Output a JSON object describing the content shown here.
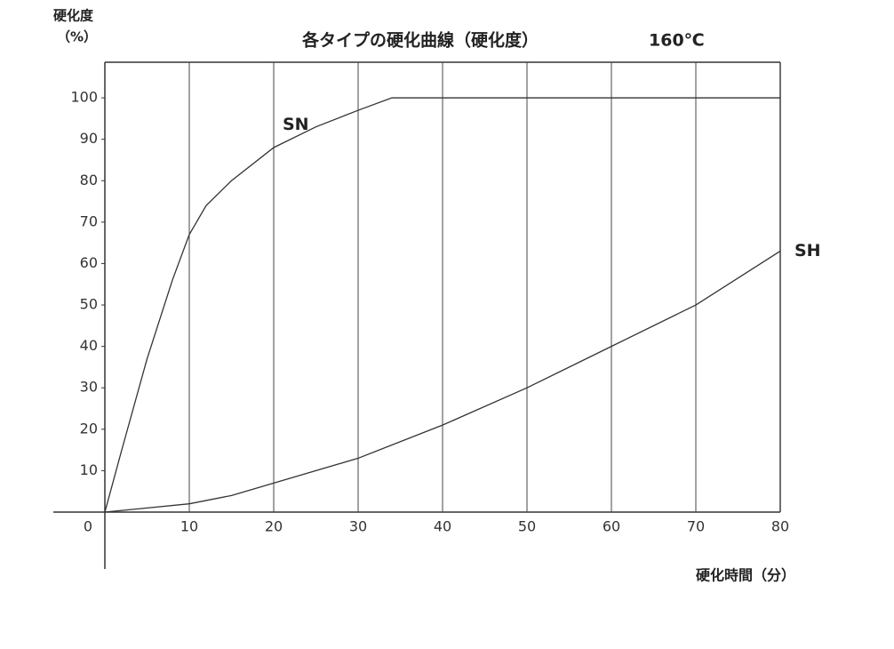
{
  "chart_data": {
    "type": "line",
    "title": "各タイプの硬化曲線（硬化度）",
    "subtitle": "160℃",
    "ylabel": [
      "硬化度",
      "（%）"
    ],
    "xlabel": "硬化時間（分）",
    "xlim": [
      0,
      80
    ],
    "ylim": [
      0,
      108.6
    ],
    "xticks": [
      10,
      20,
      30,
      40,
      50,
      60,
      70,
      80
    ],
    "yticks": [
      0,
      10,
      20,
      30,
      40,
      50,
      60,
      70,
      80,
      90,
      100
    ],
    "grid": true,
    "series": [
      {
        "name": "SN",
        "color": "#333333",
        "x": [
          0,
          2,
          5,
          8,
          10,
          12,
          15,
          20,
          25,
          30,
          34,
          80
        ],
        "values": [
          0,
          15,
          37,
          56,
          67,
          74,
          80,
          88,
          93,
          97,
          100,
          100
        ]
      },
      {
        "name": "SH",
        "color": "#333333",
        "x": [
          0,
          5,
          10,
          15,
          20,
          30,
          40,
          50,
          60,
          70,
          80
        ],
        "values": [
          0,
          1,
          2,
          4,
          7,
          13,
          21,
          30,
          40,
          50,
          63
        ]
      }
    ]
  }
}
